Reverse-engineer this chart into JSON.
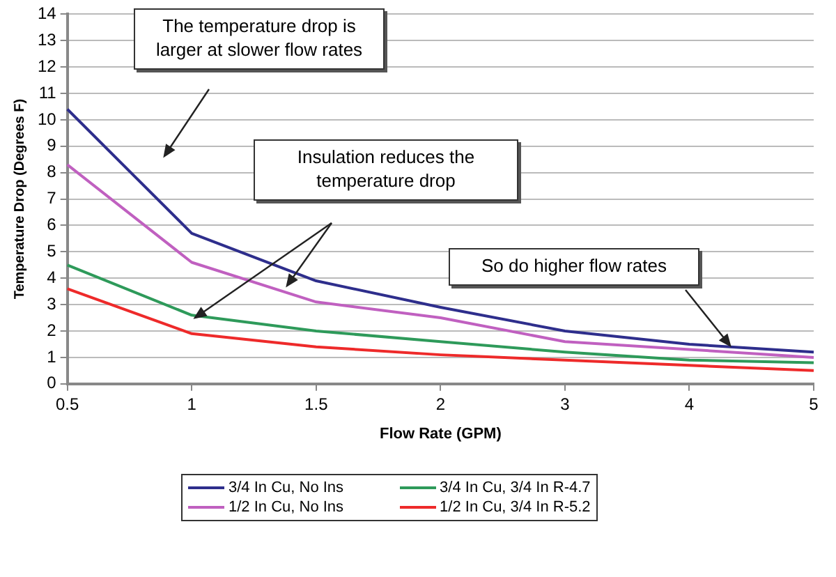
{
  "chart_data": {
    "type": "line",
    "xlabel": "Flow Rate (GPM)",
    "ylabel": "Temperature Drop (Degrees F)",
    "categories": [
      "0.5",
      "1",
      "1.5",
      "2",
      "3",
      "4",
      "5"
    ],
    "series": [
      {
        "name": "3/4 In Cu, No Ins",
        "color": "#2e2e8c",
        "values": [
          10.4,
          5.7,
          3.9,
          2.9,
          2.0,
          1.5,
          1.2
        ]
      },
      {
        "name": "1/2 In Cu, No Ins",
        "color": "#c060c0",
        "values": [
          8.3,
          4.6,
          3.1,
          2.5,
          1.6,
          1.3,
          1.0
        ]
      },
      {
        "name": "3/4 In Cu, 3/4 In R-4.7",
        "color": "#2e9a5a",
        "values": [
          4.5,
          2.6,
          2.0,
          1.6,
          1.2,
          0.9,
          0.8
        ]
      },
      {
        "name": "1/2 In Cu, 3/4 In R-5.2",
        "color": "#ee2a2a",
        "values": [
          3.6,
          1.9,
          1.4,
          1.1,
          0.9,
          0.7,
          0.5
        ]
      }
    ],
    "ylim": [
      0,
      14
    ],
    "yticks": [
      0,
      1,
      2,
      3,
      4,
      5,
      6,
      7,
      8,
      9,
      10,
      11,
      12,
      13,
      14
    ],
    "grid": "y",
    "legend": "bottom",
    "marker": "none",
    "line_style": "solid",
    "annotations": [
      "The temperature drop is larger at slower flow rates",
      "Insulation reduces the temperature drop",
      "So do higher flow rates"
    ]
  }
}
